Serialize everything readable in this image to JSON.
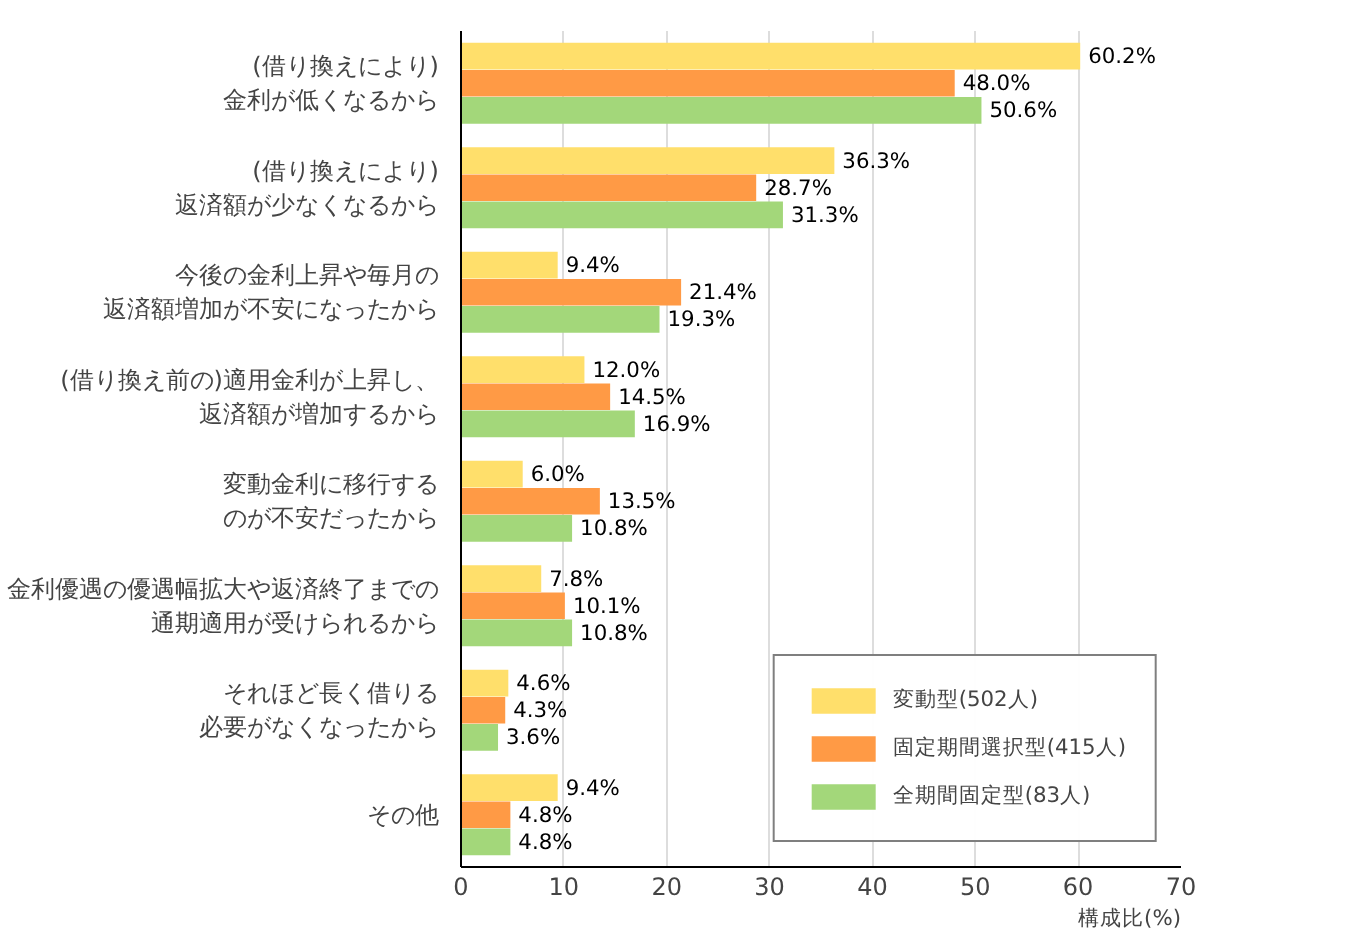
{
  "chart_data": {
    "type": "bar",
    "orientation": "horizontal",
    "xlabel": "構成比(%)",
    "categories": [
      "(借り換えにより)金利が低くなるから",
      "(借り換えにより)返済額が少なくなるから",
      "今後の金利上昇や毎月の返済額増加が不安になったから",
      "(借り換え前の)適用金利が上昇し、返済額が増加するから",
      "変動金利に移行するのが不安だったから",
      "金利優遇の優遇幅拡大や返済終了までの通期適用が受けられるから",
      "それほど長く借りる必要がなくなったから",
      "その他"
    ],
    "series": [
      {
        "name": "変動型(502人)",
        "color": "#ffdf6b",
        "values": [
          60.2,
          36.3,
          9.4,
          12.0,
          6.0,
          7.8,
          4.6,
          9.4
        ],
        "value_labels": [
          "60.2%",
          "36.3%",
          "9.4%",
          "12.0%",
          "6.0%",
          "7.8%",
          "4.6%",
          "9.4%"
        ]
      },
      {
        "name": "固定期間選択型(415人)",
        "color": "#ff9a45",
        "values": [
          48.0,
          28.7,
          21.4,
          14.5,
          13.5,
          10.1,
          4.3,
          4.8
        ],
        "value_labels": [
          "48.0%",
          "28.7%",
          "21.4%",
          "14.5%",
          "13.5%",
          "10.1%",
          "4.3%",
          "4.8%"
        ]
      },
      {
        "name": "全期間固定型(83人)",
        "color": "#a3d77a",
        "values": [
          50.6,
          31.3,
          19.3,
          16.9,
          10.8,
          10.8,
          3.6,
          4.8
        ],
        "value_labels": [
          "50.6%",
          "31.3%",
          "19.3%",
          "16.9%",
          "10.8%",
          "10.8%",
          "3.6%",
          "4.8%"
        ]
      }
    ],
    "xlim": [
      0,
      70
    ],
    "xticks": [
      0,
      10,
      20,
      30,
      40,
      50,
      60,
      70
    ],
    "grid": "x",
    "legend": "bottom right"
  }
}
